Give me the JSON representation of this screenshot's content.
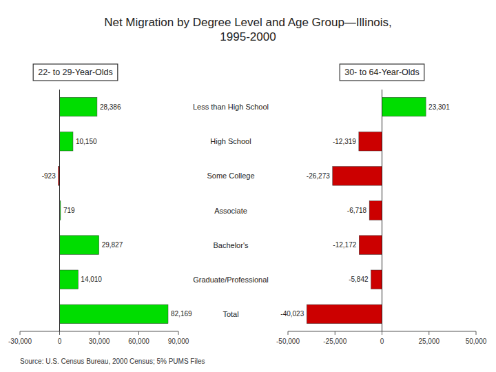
{
  "chart_data": [
    {
      "type": "bar",
      "orientation": "horizontal",
      "title": "Net Migration by Degree Level and Age Group—Illinois,\n1995-2000",
      "subtitle": "22- to 29-Year-Olds",
      "annotations": [
        "Source:  U.S. Census Bureau, 2000 Census; 5% PUMS Files"
      ],
      "categories": [
        "Less than High School",
        "High School",
        "Some College",
        "Associate",
        "Bachelor's",
        "Graduate/Professional",
        "Total"
      ],
      "values": [
        28386,
        10150,
        -923,
        719,
        29827,
        14010,
        82169
      ],
      "value_labels": [
        "28,386",
        "10,150",
        "-923",
        "719",
        "29,827",
        "14,010",
        "82,169"
      ],
      "colors": [
        "#00DD00",
        "#00DD00",
        "#CC0000",
        "#00DD00",
        "#00DD00",
        "#00DD00",
        "#00DD00"
      ],
      "xlim": [
        -30000,
        90000
      ],
      "xticks": [
        {
          "value": -30000,
          "label": "-30,000"
        },
        0,
        {
          "value": 30000,
          "label": "30,000"
        },
        {
          "value": 60000,
          "label": "60,000"
        },
        {
          "value": 90000,
          "label": "90,000"
        }
      ],
      "data_labels": true,
      "grid": false
    },
    {
      "type": "bar",
      "orientation": "horizontal",
      "subtitle": "30- to 64-Year-Olds",
      "values": [
        23301,
        -12319,
        -26273,
        -6718,
        -12172,
        -5842,
        -40023
      ],
      "value_labels": [
        "23,301",
        "-12,319",
        "-26,273",
        "-6,718",
        "-12,172",
        "-5,842",
        "-40,023"
      ],
      "colors": [
        "#00DD00",
        "#CC0000",
        "#CC0000",
        "#CC0000",
        "#CC0000",
        "#CC0000",
        "#CC0000"
      ],
      "xlim": [
        -50000,
        50000
      ],
      "xticks": [
        {
          "value": -50000,
          "label": "-50,000"
        },
        {
          "value": -25000,
          "label": "-25,000"
        },
        0,
        {
          "value": 25000,
          "label": "25,000"
        },
        {
          "value": 50000,
          "label": "50,000"
        }
      ],
      "data_labels": true,
      "grid": false
    }
  ]
}
